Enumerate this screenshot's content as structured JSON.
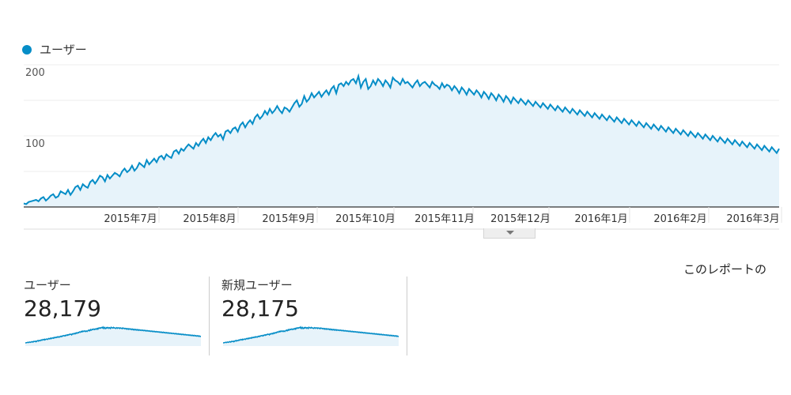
{
  "legend": {
    "label": "ユーザー",
    "color": "#058dc7"
  },
  "chart_data": {
    "type": "area",
    "series": [
      {
        "name": "ユーザー",
        "values": [
          5,
          4,
          7,
          8,
          9,
          10,
          8,
          12,
          14,
          9,
          12,
          16,
          18,
          13,
          15,
          22,
          20,
          18,
          24,
          17,
          22,
          28,
          30,
          24,
          32,
          29,
          27,
          35,
          38,
          33,
          38,
          44,
          42,
          36,
          45,
          40,
          44,
          48,
          46,
          43,
          50,
          54,
          49,
          52,
          58,
          51,
          55,
          62,
          59,
          56,
          66,
          60,
          64,
          68,
          63,
          70,
          72,
          67,
          74,
          71,
          69,
          78,
          80,
          75,
          82,
          79,
          84,
          88,
          85,
          82,
          90,
          86,
          92,
          96,
          90,
          98,
          94,
          100,
          104,
          99,
          102,
          95,
          106,
          108,
          104,
          110,
          112,
          106,
          115,
          119,
          112,
          118,
          122,
          117,
          126,
          130,
          124,
          128,
          135,
          130,
          138,
          132,
          136,
          142,
          136,
          132,
          140,
          138,
          134,
          140,
          146,
          150,
          141,
          145,
          156,
          148,
          152,
          160,
          154,
          158,
          162,
          155,
          160,
          164,
          158,
          166,
          170,
          160,
          172,
          174,
          170,
          176,
          172,
          178,
          180,
          174,
          184,
          168,
          176,
          180,
          166,
          170,
          178,
          172,
          180,
          176,
          170,
          178,
          174,
          168,
          182,
          178,
          176,
          172,
          180,
          174,
          176,
          172,
          168,
          174,
          178,
          170,
          174,
          176,
          172,
          168,
          176,
          172,
          170,
          166,
          174,
          168,
          172,
          170,
          164,
          170,
          166,
          160,
          168,
          164,
          158,
          166,
          162,
          158,
          164,
          160,
          154,
          162,
          158,
          152,
          160,
          156,
          150,
          158,
          154,
          148,
          156,
          152,
          146,
          154,
          150,
          146,
          152,
          148,
          144,
          150,
          146,
          142,
          148,
          144,
          140,
          146,
          142,
          138,
          144,
          140,
          136,
          142,
          138,
          134,
          140,
          136,
          132,
          138,
          134,
          130,
          136,
          132,
          128,
          134,
          130,
          126,
          132,
          128,
          124,
          130,
          126,
          122,
          128,
          124,
          120,
          126,
          122,
          118,
          124,
          120,
          116,
          122,
          118,
          114,
          120,
          116,
          112,
          118,
          114,
          110,
          116,
          112,
          108,
          114,
          110,
          106,
          112,
          108,
          104,
          110,
          106,
          102,
          108,
          104,
          100,
          106,
          102,
          98,
          104,
          100,
          96,
          102,
          98,
          94,
          100,
          96,
          92,
          98,
          94,
          90,
          96,
          92,
          88,
          94,
          90,
          86,
          92,
          88,
          84,
          90,
          86,
          82,
          88,
          84,
          80,
          86,
          82,
          78,
          84,
          80,
          76,
          82
        ]
      }
    ],
    "y_ticks": [
      "200",
      "100"
    ],
    "y_range": [
      0,
      200
    ],
    "x_labels": [
      "2015年7月",
      "2015年8月",
      "2015年9月",
      "2015年10月",
      "2015年11月",
      "2015年12月",
      "2016年1月",
      "2016年2月",
      "2016年3月"
    ],
    "grid": true
  },
  "expand_tab": {
    "icon": "chevron-down-icon"
  },
  "report_note": "このレポートの",
  "metrics": [
    {
      "label": "ユーザー",
      "value": "28,179"
    },
    {
      "label": "新規ユーザー",
      "value": "28,175"
    }
  ]
}
